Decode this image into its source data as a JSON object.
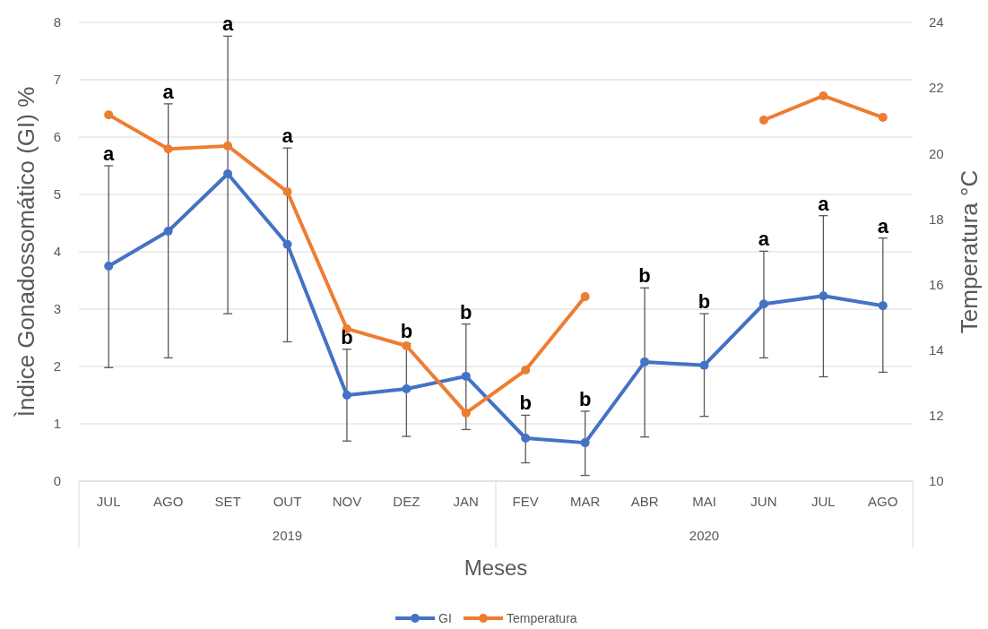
{
  "chart_data": {
    "type": "line",
    "xlabel": "Meses",
    "ylabel": "Ìndice Gonadossomático (GI)  %",
    "y2label": "Temperatura °C",
    "categories": [
      "JUL",
      "AGO",
      "SET",
      "OUT",
      "NOV",
      "DEZ",
      "JAN",
      "FEV",
      "MAR",
      "ABR",
      "MAI",
      "JUN",
      "JUL",
      "AGO"
    ],
    "series": [
      {
        "name": "GI",
        "color": "#4472c4",
        "values": [
          3.75,
          4.36,
          5.36,
          4.13,
          1.5,
          1.61,
          1.83,
          0.75,
          0.67,
          2.08,
          2.02,
          3.09,
          3.23,
          3.06
        ],
        "errors": [
          [
            1.98,
            5.5
          ],
          [
            2.15,
            6.58
          ],
          [
            2.92,
            7.76
          ],
          [
            2.43,
            5.81
          ],
          [
            0.7,
            2.3
          ],
          [
            0.78,
            2.4
          ],
          [
            0.9,
            2.74
          ],
          [
            0.32,
            1.15
          ],
          [
            0.1,
            1.22
          ],
          [
            0.77,
            3.37
          ],
          [
            1.13,
            2.92
          ],
          [
            2.15,
            4.01
          ],
          [
            1.82,
            4.63
          ],
          [
            1.9,
            4.24
          ]
        ]
      },
      {
        "name": "Temperatura",
        "color": "#ed7d31",
        "axis": "y2",
        "values": [
          21.18,
          20.14,
          20.23,
          18.83,
          14.65,
          14.13,
          12.08,
          13.39,
          15.63,
          null,
          null,
          21.02,
          21.76,
          21.1
        ]
      }
    ],
    "ylim": [
      0,
      8
    ],
    "yticks": [
      0,
      1,
      2,
      3,
      4,
      5,
      6,
      7,
      8
    ],
    "y2lim": [
      10,
      24
    ],
    "y2ticks": [
      10,
      12,
      14,
      16,
      18,
      20,
      22,
      24
    ],
    "grid": "y",
    "legend": "bottom",
    "marker": "circle",
    "line_style": "solid",
    "annotations": [
      "a",
      "a",
      "a",
      "a",
      "b",
      "b",
      "b",
      "b",
      "b",
      "b",
      "b",
      "a",
      "a",
      "a",
      "2019",
      "2020"
    ]
  }
}
